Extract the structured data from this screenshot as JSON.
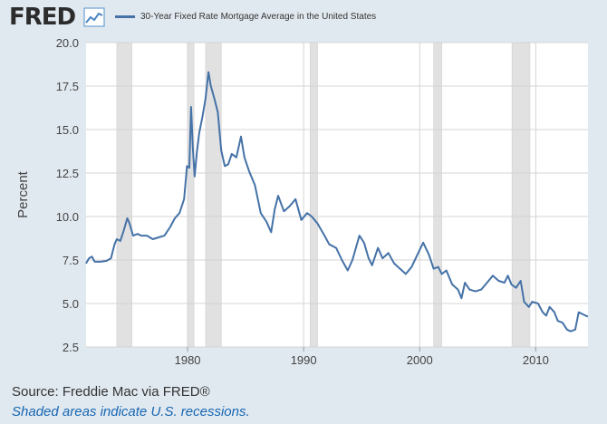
{
  "header": {
    "logo_text": "FRED",
    "logo_icon": "line-chart-icon"
  },
  "chart_data": {
    "type": "line",
    "title": "",
    "xlabel": "",
    "ylabel": "Percent",
    "xlim": [
      1971.25,
      2014.5
    ],
    "ylim": [
      2.5,
      20.0
    ],
    "yticks": [
      2.5,
      5.0,
      7.5,
      10.0,
      12.5,
      15.0,
      17.5,
      20.0
    ],
    "ytick_labels": [
      "2.5",
      "5.0",
      "7.5",
      "10.0",
      "12.5",
      "15.0",
      "17.5",
      "20.0"
    ],
    "xticks": [
      1980,
      1990,
      2000,
      2010
    ],
    "xtick_labels": [
      "1980",
      "1990",
      "2000",
      "2010"
    ],
    "grid": true,
    "legend_position": "top",
    "recessions": [
      [
        1973.9,
        1975.2
      ],
      [
        1980.0,
        1980.55
      ],
      [
        1981.55,
        1982.9
      ],
      [
        1990.55,
        1991.2
      ],
      [
        2001.2,
        2001.9
      ],
      [
        2007.95,
        2009.5
      ]
    ],
    "series": [
      {
        "name": "30-Year Fixed Rate Mortgage Average in the United States",
        "color": "#4572a7",
        "points": [
          [
            1971.25,
            7.3
          ],
          [
            1971.5,
            7.6
          ],
          [
            1971.75,
            7.7
          ],
          [
            1972.0,
            7.4
          ],
          [
            1972.5,
            7.4
          ],
          [
            1973.0,
            7.45
          ],
          [
            1973.4,
            7.6
          ],
          [
            1973.7,
            8.4
          ],
          [
            1973.9,
            8.7
          ],
          [
            1974.2,
            8.6
          ],
          [
            1974.5,
            9.2
          ],
          [
            1974.8,
            9.9
          ],
          [
            1975.0,
            9.6
          ],
          [
            1975.3,
            8.9
          ],
          [
            1975.7,
            9.0
          ],
          [
            1976.0,
            8.9
          ],
          [
            1976.5,
            8.9
          ],
          [
            1977.0,
            8.7
          ],
          [
            1977.5,
            8.8
          ],
          [
            1978.0,
            8.9
          ],
          [
            1978.5,
            9.4
          ],
          [
            1978.9,
            9.9
          ],
          [
            1979.3,
            10.2
          ],
          [
            1979.7,
            11.0
          ],
          [
            1979.95,
            12.9
          ],
          [
            1980.15,
            12.8
          ],
          [
            1980.3,
            16.3
          ],
          [
            1980.45,
            14.0
          ],
          [
            1980.6,
            12.3
          ],
          [
            1980.8,
            13.7
          ],
          [
            1981.0,
            14.8
          ],
          [
            1981.3,
            15.8
          ],
          [
            1981.55,
            16.8
          ],
          [
            1981.8,
            18.3
          ],
          [
            1982.0,
            17.5
          ],
          [
            1982.3,
            16.8
          ],
          [
            1982.6,
            16.0
          ],
          [
            1982.9,
            13.8
          ],
          [
            1983.2,
            12.9
          ],
          [
            1983.5,
            13.0
          ],
          [
            1983.8,
            13.6
          ],
          [
            1984.2,
            13.4
          ],
          [
            1984.6,
            14.6
          ],
          [
            1984.9,
            13.4
          ],
          [
            1985.3,
            12.6
          ],
          [
            1985.8,
            11.8
          ],
          [
            1986.3,
            10.2
          ],
          [
            1986.8,
            9.7
          ],
          [
            1987.2,
            9.1
          ],
          [
            1987.5,
            10.4
          ],
          [
            1987.8,
            11.2
          ],
          [
            1988.3,
            10.3
          ],
          [
            1988.8,
            10.6
          ],
          [
            1989.3,
            11.0
          ],
          [
            1989.8,
            9.8
          ],
          [
            1990.3,
            10.2
          ],
          [
            1990.7,
            10.0
          ],
          [
            1991.2,
            9.6
          ],
          [
            1991.8,
            8.9
          ],
          [
            1992.2,
            8.4
          ],
          [
            1992.8,
            8.2
          ],
          [
            1993.3,
            7.5
          ],
          [
            1993.8,
            6.9
          ],
          [
            1994.2,
            7.5
          ],
          [
            1994.8,
            8.9
          ],
          [
            1995.2,
            8.5
          ],
          [
            1995.6,
            7.6
          ],
          [
            1995.9,
            7.2
          ],
          [
            1996.4,
            8.2
          ],
          [
            1996.8,
            7.6
          ],
          [
            1997.3,
            7.9
          ],
          [
            1997.8,
            7.3
          ],
          [
            1998.3,
            7.0
          ],
          [
            1998.8,
            6.7
          ],
          [
            1999.3,
            7.1
          ],
          [
            1999.8,
            7.8
          ],
          [
            2000.3,
            8.5
          ],
          [
            2000.8,
            7.8
          ],
          [
            2001.2,
            7.0
          ],
          [
            2001.6,
            7.1
          ],
          [
            2001.9,
            6.7
          ],
          [
            2002.3,
            6.9
          ],
          [
            2002.8,
            6.1
          ],
          [
            2003.3,
            5.8
          ],
          [
            2003.6,
            5.3
          ],
          [
            2003.9,
            6.2
          ],
          [
            2004.3,
            5.8
          ],
          [
            2004.8,
            5.7
          ],
          [
            2005.3,
            5.8
          ],
          [
            2005.8,
            6.2
          ],
          [
            2006.3,
            6.6
          ],
          [
            2006.8,
            6.3
          ],
          [
            2007.3,
            6.2
          ],
          [
            2007.6,
            6.6
          ],
          [
            2007.9,
            6.1
          ],
          [
            2008.3,
            5.9
          ],
          [
            2008.7,
            6.3
          ],
          [
            2009.0,
            5.1
          ],
          [
            2009.4,
            4.8
          ],
          [
            2009.7,
            5.1
          ],
          [
            2010.2,
            5.0
          ],
          [
            2010.6,
            4.5
          ],
          [
            2010.9,
            4.3
          ],
          [
            2011.2,
            4.8
          ],
          [
            2011.6,
            4.5
          ],
          [
            2011.9,
            4.0
          ],
          [
            2012.3,
            3.9
          ],
          [
            2012.7,
            3.5
          ],
          [
            2013.0,
            3.4
          ],
          [
            2013.4,
            3.5
          ],
          [
            2013.7,
            4.5
          ],
          [
            2014.0,
            4.4
          ],
          [
            2014.3,
            4.3
          ],
          [
            2014.5,
            4.25
          ]
        ]
      }
    ]
  },
  "footer": {
    "source": "Source: Freddie Mac via FRED®",
    "note": "Shaded areas indicate U.S. recessions."
  }
}
